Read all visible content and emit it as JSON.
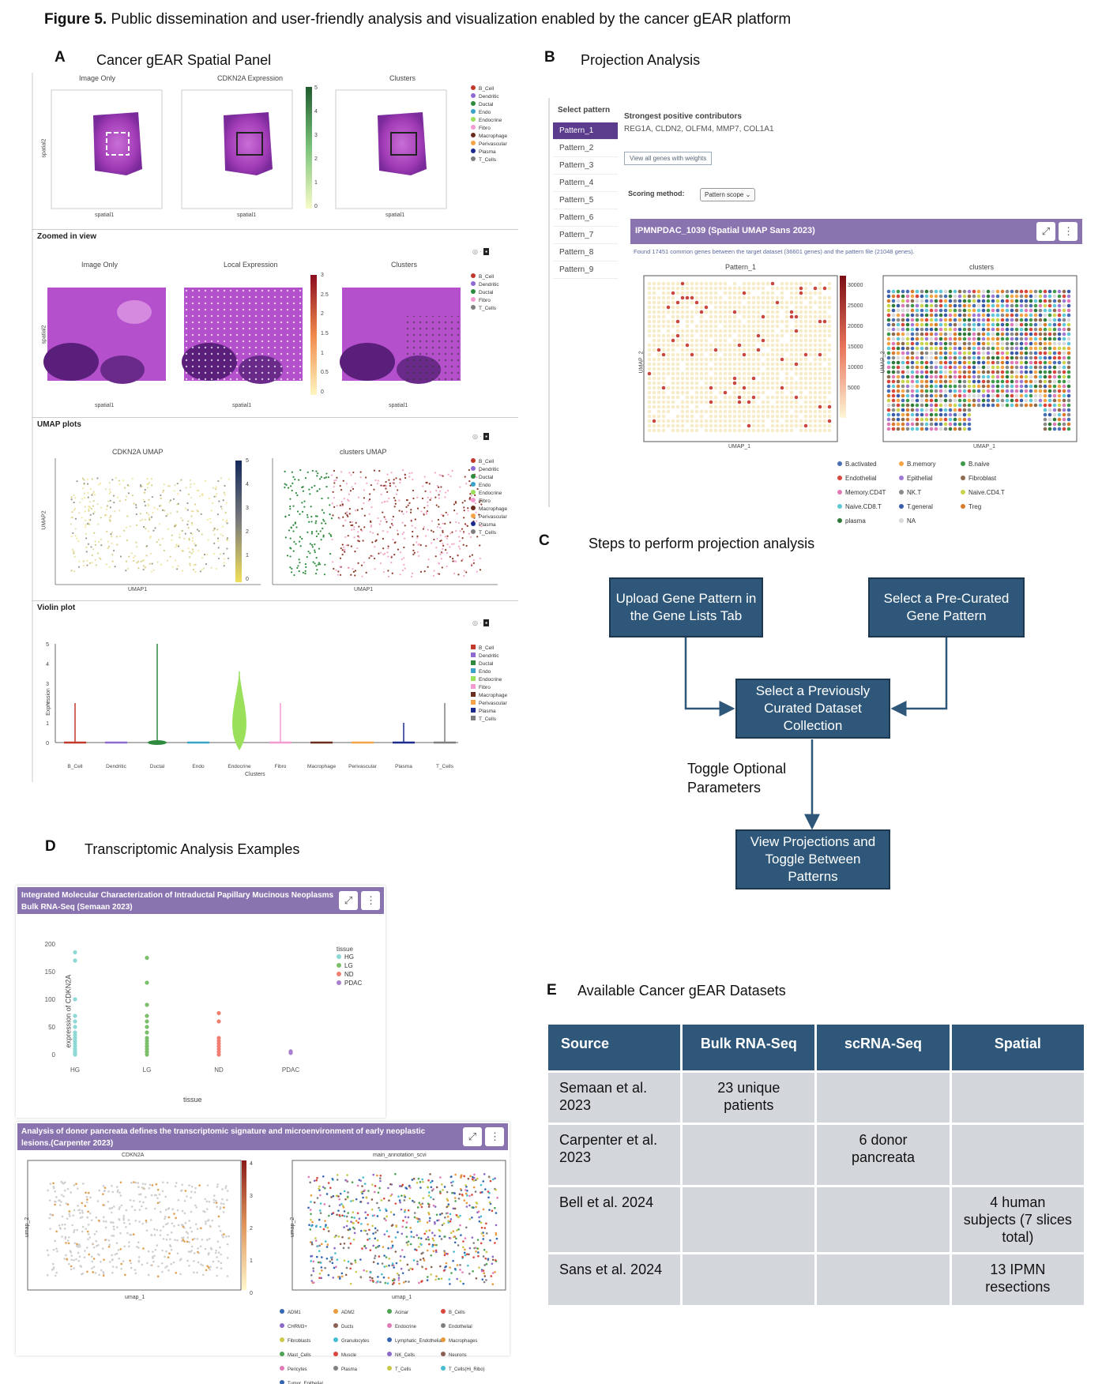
{
  "figure": {
    "label": "Figure 5.",
    "caption": "Public dissemination and user-friendly analysis and visualization enabled by the cancer gEAR platform"
  },
  "panelA": {
    "label": "A",
    "title": "Cancer gEAR Spatial Panel",
    "row1": {
      "titles": [
        "Image Only",
        "CDKN2A Expression",
        "Clusters"
      ],
      "xlabel": "spatial1",
      "ylabel": "spatial2",
      "colorbar_ticks": [
        "5",
        "4",
        "3",
        "2",
        "1",
        "0"
      ]
    },
    "zoom": {
      "heading": "Zoomed in view",
      "titles": [
        "Image Only",
        "Local Expression",
        "Clusters"
      ],
      "xlabel": "spatial1",
      "ylabel": "spatial2",
      "colorbar_ticks": [
        "3",
        "2.5",
        "2",
        "1.5",
        "1",
        "0.5",
        "0"
      ],
      "legend": [
        "B_Cell",
        "Dendritic",
        "Ductal",
        "Fibro",
        "T_Cells"
      ]
    },
    "umap": {
      "heading": "UMAP plots",
      "titles": [
        "CDKN2A UMAP",
        "clusters UMAP"
      ],
      "xlabel": "UMAP1",
      "ylabel": "UMAP2",
      "colorbar_ticks": [
        "5",
        "4",
        "3",
        "2",
        "1",
        "0"
      ]
    },
    "violin": {
      "heading": "Violin plot",
      "ylabel": "Expression",
      "xlabel": "Clusters",
      "yticks": [
        "5",
        "4",
        "3",
        "2",
        "1",
        "0"
      ]
    },
    "clusters": [
      "B_Cell",
      "Dendritic",
      "Ductal",
      "Endo",
      "Endocrine",
      "Fibro",
      "Macrophage",
      "Perivascular",
      "Plasma",
      "T_Cells"
    ],
    "cluster_colors": [
      "#c0392b",
      "#8e6bd1",
      "#2e8b3e",
      "#3aa3c8",
      "#9be05b",
      "#f39ad0",
      "#6b2d1e",
      "#f4a447",
      "#1c2a8c",
      "#7f7f7f"
    ]
  },
  "panelB": {
    "label": "B",
    "title": "Projection Analysis",
    "select_label": "Select pattern",
    "patterns": [
      "Pattern_1",
      "Pattern_2",
      "Pattern_3",
      "Pattern_4",
      "Pattern_5",
      "Pattern_6",
      "Pattern_7",
      "Pattern_8",
      "Pattern_9"
    ],
    "contrib_heading": "Strongest positive contributors",
    "contrib_genes": "REG1A, CLDN2, OLFM4, MMP7, COL1A1",
    "weights_button": "View all genes with weights",
    "scoring_label": "Scoring method:",
    "scoring_value": "Pattern scope",
    "dataset_title": "IPMNPDAC_1039 (Spatial UMAP Sans 2023)",
    "found_text": "Found 17451 common genes between the target dataset (36601 genes) and the pattern file (21048 genes).",
    "plot_titles": [
      "Pattern_1",
      "clusters"
    ],
    "xlabel": "UMAP_1",
    "ylabel": "UMAP_2",
    "colorbar_ticks": [
      "30000",
      "25000",
      "20000",
      "15000",
      "10000",
      "5000"
    ],
    "legend": [
      "B.activated",
      "B.memory",
      "B.naive",
      "Endothelial",
      "Epithelial",
      "Fibroblast",
      "Memory.CD4T",
      "NK.T",
      "Naive.CD4.T",
      "Naive.CD8.T",
      "T.general",
      "Treg",
      "plasma",
      "NA"
    ],
    "legend_colors": [
      "#4a6fb5",
      "#f4a447",
      "#3e9a4a",
      "#d9473c",
      "#9e7ad6",
      "#8c6b4f",
      "#e07ab7",
      "#8a8a8a",
      "#c9d34c",
      "#5ec7d8",
      "#3a5ca8",
      "#d97b2c",
      "#2f7a3a",
      "#d8d8d8"
    ]
  },
  "panelC": {
    "label": "C",
    "title": "Steps to perform projection analysis",
    "box1": "Upload Gene Pattern in the Gene Lists Tab",
    "box2": "Select a Pre-Curated Gene Pattern",
    "box3": "Select a Previously Curated Dataset Collection",
    "box4": "View Projections and Toggle Between Patterns",
    "toggle_text": "Toggle Optional Parameters"
  },
  "panelD": {
    "label": "D",
    "title": "Transcriptomic Analysis Examples",
    "card1_title": "Integrated Molecular Characterization of Intraductal Papillary Mucinous Neoplasms Bulk RNA-Seq (Semaan 2023)",
    "ylabel": "expression of CDKN2A",
    "xlabel": "tissue",
    "legend_title": "tissue",
    "yticks": [
      "200",
      "150",
      "100",
      "50",
      "0"
    ],
    "tissues": [
      "HG",
      "LG",
      "ND",
      "PDAC"
    ],
    "tissue_colors": [
      "#8ed8d6",
      "#7cbf6a",
      "#f07f72",
      "#a87fcf"
    ],
    "card2_title": "Analysis of donor pancreata defines the transcriptomic signature and microenvironment of early neoplastic lesions.(Carpenter 2023)",
    "umap_titles": [
      "CDKN2A",
      "main_annotation_scvi"
    ],
    "umap_xlabel": "umap_1",
    "umap_ylabel": "umap_2",
    "colorbar_ticks": [
      "4",
      "3",
      "2",
      "1",
      "0"
    ],
    "annotation_legend": [
      "ADM1",
      "ADM2",
      "Acinar",
      "B_Cells",
      "CHRM3+",
      "Ducts",
      "Endocrine",
      "Endothelial",
      "Fibroblasts",
      "Granulocytes",
      "Lymphatic_Endothelial",
      "Macrophages",
      "Mast_Cells",
      "Muscle",
      "NK_Cells",
      "Neurons",
      "Pericytes",
      "Plasma",
      "T_Cells",
      "T_Cells(Hi_Ribo)",
      "Tumor_Epithelial"
    ],
    "annotation_colors": [
      "#3566b0",
      "#e89a3c",
      "#4fa354",
      "#d9473c",
      "#8c68c7",
      "#8a6050",
      "#e07ab7",
      "#7f7f7f",
      "#c8c84a",
      "#45bcd0",
      "#3566b0",
      "#e89a3c",
      "#4fa354",
      "#d9473c",
      "#8c68c7",
      "#8a6050",
      "#e07ab7",
      "#7f7f7f",
      "#c8c84a",
      "#45bcd0",
      "#3566b0"
    ]
  },
  "panelE": {
    "label": "E",
    "title": "Available Cancer gEAR Datasets",
    "headers": [
      "Source",
      "Bulk RNA-Seq",
      "scRNA-Seq",
      "Spatial"
    ],
    "rows": [
      [
        "Semaan et al. 2023",
        "23 unique patients",
        "",
        ""
      ],
      [
        "Carpenter et al. 2023",
        "",
        "6 donor pancreata",
        ""
      ],
      [
        "Bell et al. 2024",
        "",
        "",
        "4 human subjects (7 slices total)"
      ],
      [
        "Sans et al. 2024",
        "",
        "",
        "13 IPMN resections"
      ]
    ]
  }
}
